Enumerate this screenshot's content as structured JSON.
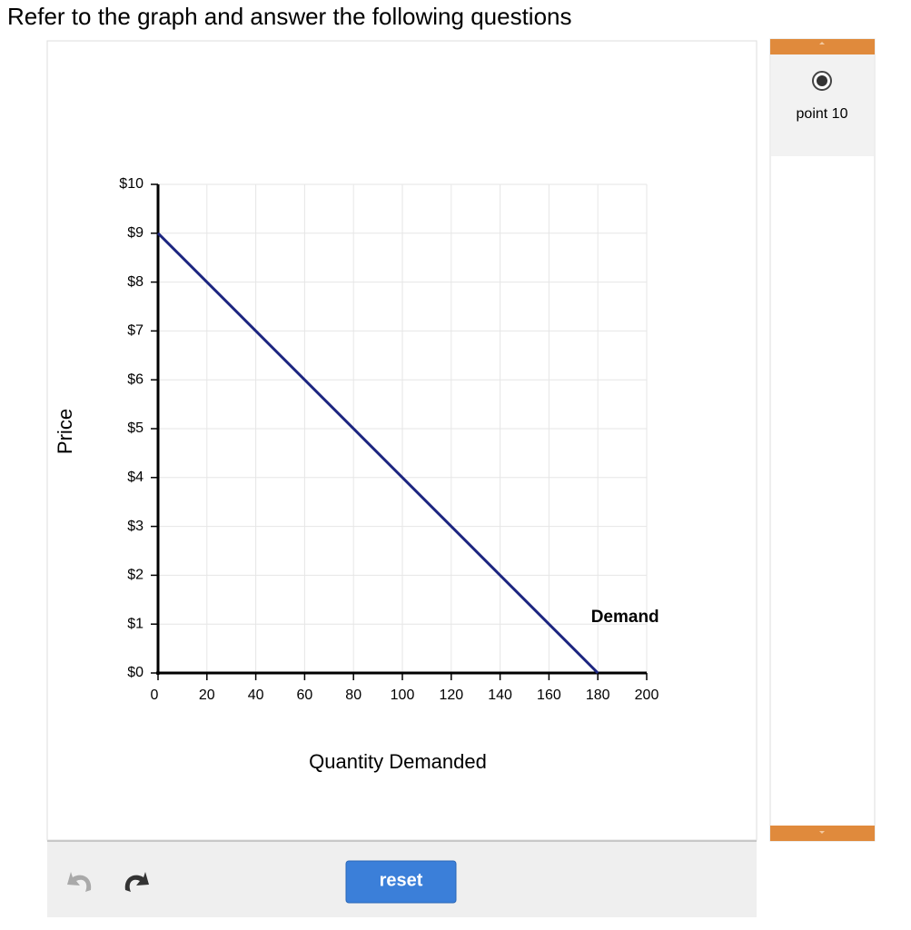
{
  "header": {
    "title": "Refer to the graph and answer the following questions"
  },
  "chart_data": {
    "type": "line",
    "xlabel": "Quantity Demanded",
    "ylabel": "Price",
    "x": [
      0,
      180
    ],
    "series": [
      {
        "name": "Demand",
        "color": "#1c2580",
        "values": [
          9,
          0
        ]
      }
    ],
    "xlim": [
      0,
      200
    ],
    "ylim": [
      0,
      10
    ],
    "xticks": [
      0,
      20,
      40,
      60,
      80,
      100,
      120,
      140,
      160,
      180,
      200
    ],
    "yticks": [
      {
        "value": 0,
        "label": "$0"
      },
      {
        "value": 1,
        "label": "$1"
      },
      {
        "value": 2,
        "label": "$2"
      },
      {
        "value": 3,
        "label": "$3"
      },
      {
        "value": 4,
        "label": "$4"
      },
      {
        "value": 5,
        "label": "$5"
      },
      {
        "value": 6,
        "label": "$6"
      },
      {
        "value": 7,
        "label": "$7"
      },
      {
        "value": 8,
        "label": "$8"
      },
      {
        "value": 9,
        "label": "$9"
      },
      {
        "value": 10,
        "label": "$10"
      }
    ],
    "grid": true
  },
  "toolbar": {
    "reset": "reset"
  },
  "sidebar": {
    "tool": "point 10"
  }
}
